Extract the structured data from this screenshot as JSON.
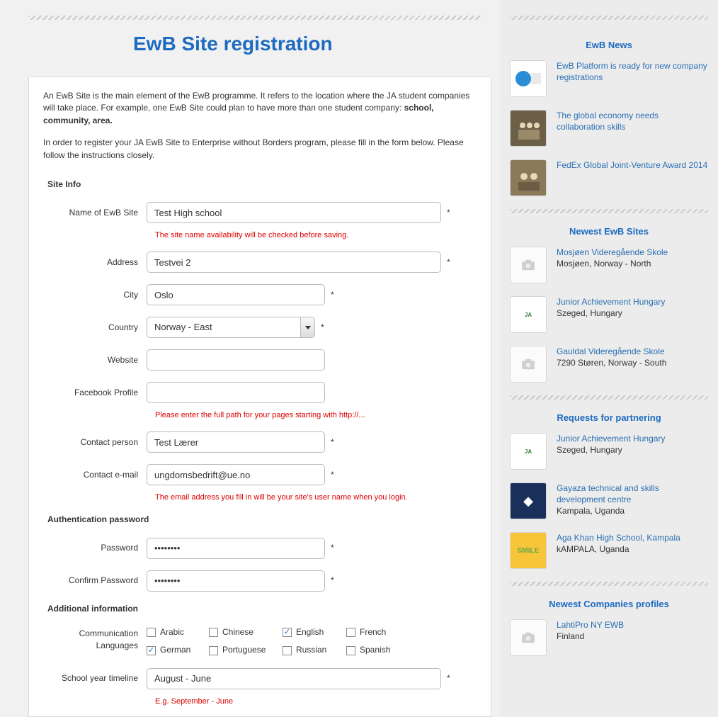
{
  "page": {
    "title": "EwB Site registration"
  },
  "intro": {
    "p1a": "An EwB Site is the main element of the EwB programme. It refers to the location where the JA student companies will take place.  For example, one EwB Site could plan to have more than one student company: ",
    "p1b": "school, community, area.",
    "p2": "In order to register your JA EwB Site to Enterprise without Borders program, please fill in the form below. Please follow the instructions closely."
  },
  "sections": {
    "site_info": "Site Info",
    "auth": "Authentication password",
    "extra": "Additional information"
  },
  "labels": {
    "name": "Name of EwB Site",
    "address": "Address",
    "city": "City",
    "country": "Country",
    "website": "Website",
    "facebook": "Facebook Profile",
    "contact_person": "Contact person",
    "contact_email": "Contact e-mail",
    "password": "Password",
    "confirm_password": "Confirm Password",
    "comm_lang": "Communication Languages",
    "school_year": "School year timeline"
  },
  "values": {
    "name": "Test High school",
    "address": "Testvei 2",
    "city": "Oslo",
    "country": "Norway - East",
    "website": "",
    "facebook": "",
    "contact_person": "Test Lærer",
    "contact_email": "ungdomsbedrift@ue.no",
    "password": "••••••••",
    "confirm_password": "••••••••",
    "school_year": "August - June"
  },
  "hints": {
    "name": "The site name availability will be checked before saving.",
    "facebook": "Please enter the full path for your pages starting with http://...",
    "email": "The email address you fill in will be your site's user name when you login.",
    "school_year": "E.g. September - June"
  },
  "languages": [
    {
      "label": "Arabic",
      "checked": false
    },
    {
      "label": "Chinese",
      "checked": false
    },
    {
      "label": "English",
      "checked": true
    },
    {
      "label": "French",
      "checked": false
    },
    {
      "label": "German",
      "checked": true
    },
    {
      "label": "Portuguese",
      "checked": false
    },
    {
      "label": "Russian",
      "checked": false
    },
    {
      "label": "Spanish",
      "checked": false
    }
  ],
  "sidebar": {
    "news_h": "EwB News",
    "news": [
      {
        "title": "EwB Platform is ready for new company registrations",
        "thumb": "img1"
      },
      {
        "title": "The global economy needs collaboration skills",
        "thumb": "img2"
      },
      {
        "title": "FedEx Global Joint-Venture Award 2014",
        "thumb": "img3"
      }
    ],
    "sites_h": "Newest EwB Sites",
    "sites": [
      {
        "title": "Mosjøen Videregående Skole",
        "sub": "Mosjøen, Norway - North",
        "thumb": "ph"
      },
      {
        "title": "Junior Achievement Hungary",
        "sub": "Szeged, Hungary",
        "thumb": "ja"
      },
      {
        "title": "Gauldal Videregående Skole",
        "sub": "7290 Støren, Norway - South",
        "thumb": "ph"
      }
    ],
    "partner_h": "Requests for partnering",
    "partner": [
      {
        "title": "Junior Achievement Hungary",
        "sub": "Szeged, Hungary",
        "thumb": "ja"
      },
      {
        "title": "Gayaza technical and skills development centre",
        "sub": "Kampala, Uganda",
        "thumb": "gz"
      },
      {
        "title": "Aga Khan High School, Kampala",
        "sub": "kAMPALA, Uganda",
        "thumb": "sm"
      }
    ],
    "companies_h": "Newest Companies profiles",
    "companies": [
      {
        "title": "LahtiPro NY EWB",
        "sub": "Finland",
        "thumb": "ph"
      }
    ]
  }
}
